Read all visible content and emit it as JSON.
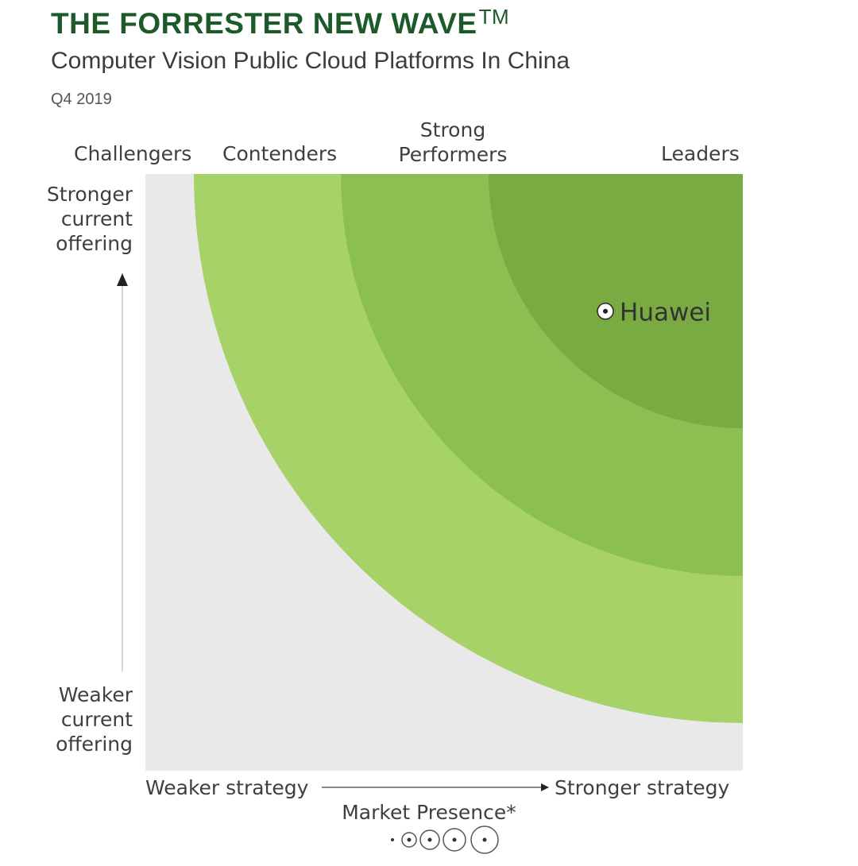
{
  "header": {
    "brand": "THE FORRESTER NEW WAVE",
    "brand_tm": "TM",
    "subtitle": "Computer Vision Public Cloud Platforms In China",
    "date": "Q4 2019"
  },
  "colors": {
    "background": "#e9e9e9",
    "contenders": "#a7d268",
    "strong_performers": "#8cbf52",
    "leaders": "#7aab42",
    "brand": "#1c5a2c"
  },
  "chart_data": {
    "type": "scatter",
    "segments": [
      "Challengers",
      "Contenders",
      "Strong Performers",
      "Leaders"
    ],
    "y_axis": {
      "top": "Stronger current offering",
      "bottom": "Weaker current offering"
    },
    "x_axis": {
      "left": "Weaker strategy",
      "right": "Stronger strategy"
    },
    "market_presence_label": "Market Presence*",
    "vendors": [
      {
        "name": "Huawei",
        "strategy": 0.77,
        "current_offering": 0.77
      }
    ]
  }
}
